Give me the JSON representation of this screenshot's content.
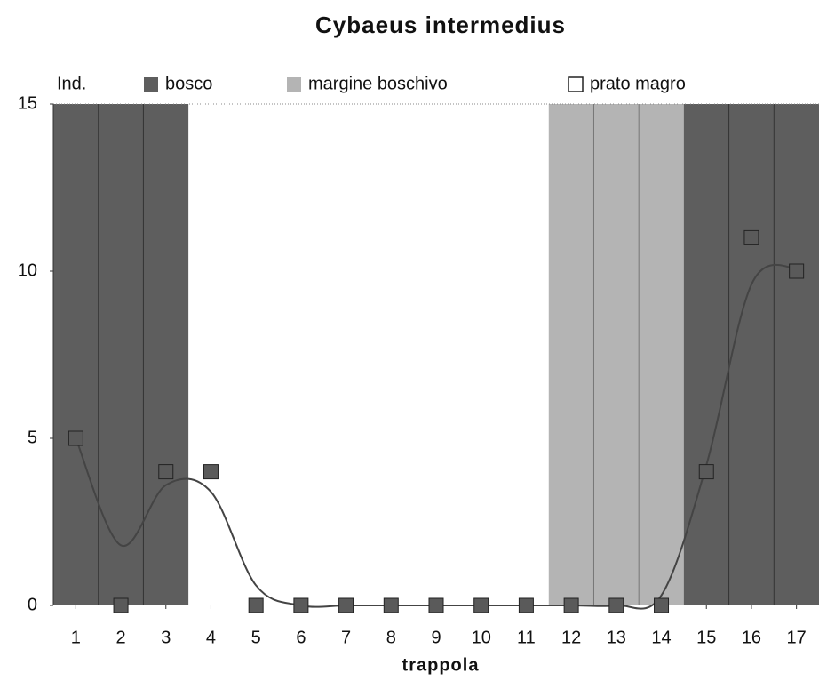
{
  "chart_data": {
    "type": "scatter",
    "title": "Cybaeus intermedius",
    "y_label": "Ind.",
    "x_label": "trappola",
    "categories": [
      "1",
      "2",
      "3",
      "4",
      "5",
      "6",
      "7",
      "8",
      "9",
      "10",
      "11",
      "12",
      "13",
      "14",
      "15",
      "16",
      "17"
    ],
    "values": [
      5,
      0,
      4,
      4,
      0,
      0,
      0,
      0,
      0,
      0,
      0,
      0,
      0,
      0,
      4,
      11,
      10
    ],
    "marker_color": "#5a5a5a",
    "trend": {
      "color": "#444",
      "values": [
        5,
        1.8,
        3.6,
        3.4,
        0.6,
        0,
        0,
        0,
        0,
        0,
        0,
        0,
        0,
        0.3,
        4.2,
        9.6,
        10.1
      ]
    },
    "legend": [
      {
        "name": "bosco",
        "color": "#5e5e5e"
      },
      {
        "name": "margine boschivo",
        "color": "#b4b4b4"
      },
      {
        "name": "prato magro",
        "color": "#ffffff"
      }
    ],
    "habitat": [
      0,
      0,
      0,
      2,
      2,
      2,
      2,
      2,
      2,
      2,
      2,
      1,
      1,
      1,
      0,
      0,
      0
    ],
    "ylim": [
      0,
      15
    ],
    "yticks": [
      0,
      5,
      10,
      15
    ]
  }
}
